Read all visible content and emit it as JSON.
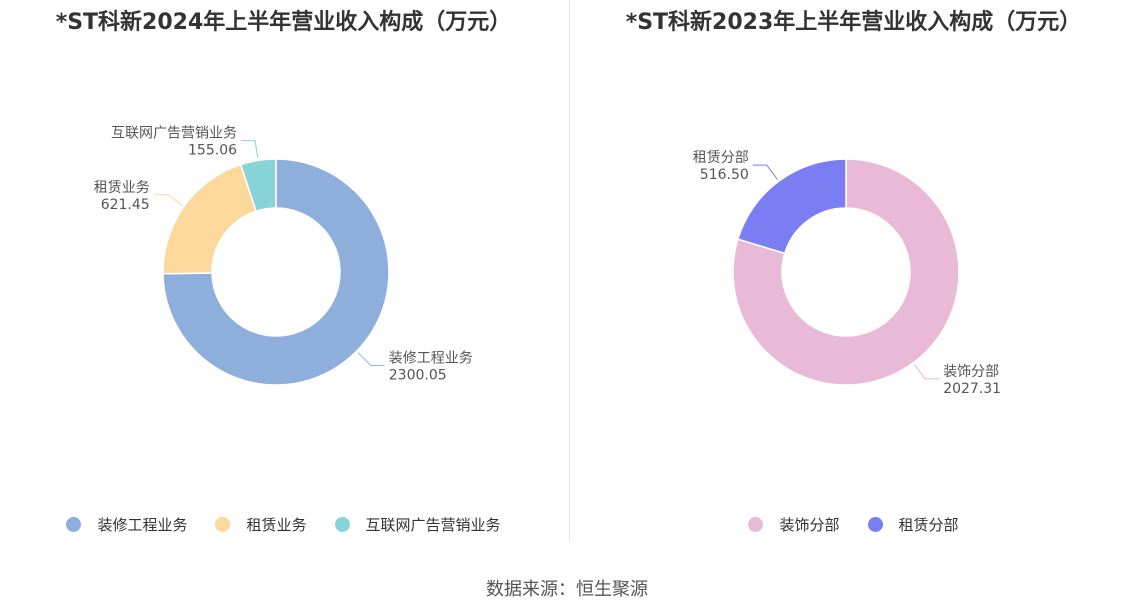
{
  "chart_data": [
    {
      "type": "pie",
      "title": "*ST科新2024年上半年营业收入构成（万元）",
      "categories": [
        "装修工程业务",
        "租赁业务",
        "互联网广告营销业务"
      ],
      "values": [
        2300.05,
        621.45,
        155.06
      ],
      "value_labels": [
        "2300.05",
        "621.45",
        "155.06"
      ],
      "colors": [
        "#8eaedb",
        "#fcd89b",
        "#86d4d8"
      ],
      "donut": true,
      "legend_position": "bottom"
    },
    {
      "type": "pie",
      "title": "*ST科新2023年上半年营业收入构成（万元）",
      "categories": [
        "装饰分部",
        "租赁分部"
      ],
      "values": [
        2027.31,
        516.5
      ],
      "value_labels": [
        "2027.31",
        "516.50"
      ],
      "colors": [
        "#e9b9d8",
        "#7b7ef2"
      ],
      "donut": true,
      "legend_position": "bottom"
    }
  ],
  "source": "数据来源：恒生聚源"
}
